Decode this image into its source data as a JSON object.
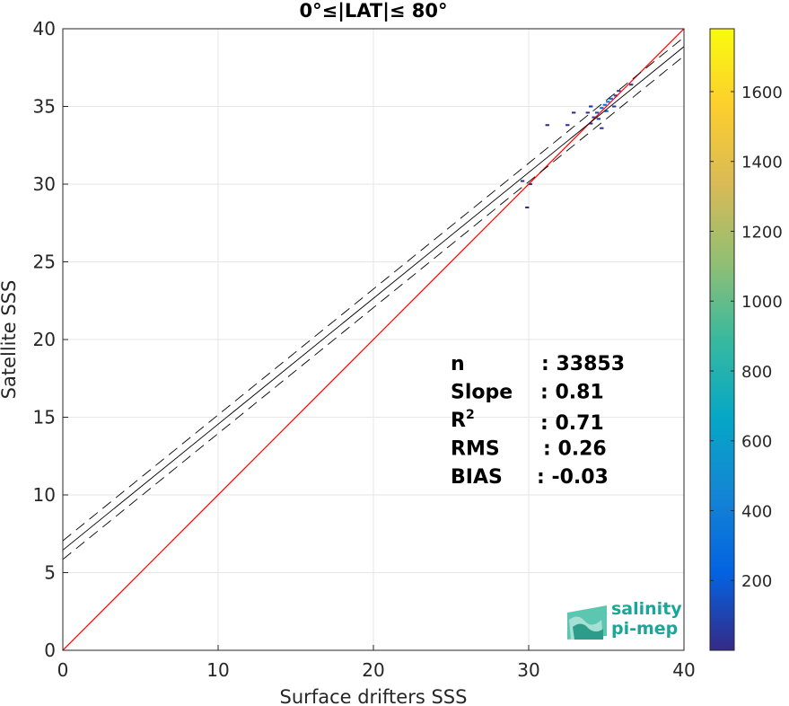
{
  "chart_data": {
    "type": "heatmap",
    "title": "0°≤|LAT|≤ 80°",
    "xlabel": "Surface drifters SSS",
    "ylabel": "Satellite SSS",
    "xlim": [
      0,
      40
    ],
    "ylim": [
      0,
      40
    ],
    "xticks": [
      "0",
      "10",
      "20",
      "30",
      "40"
    ],
    "yticks": [
      "0",
      "5",
      "10",
      "15",
      "20",
      "25",
      "30",
      "35",
      "40"
    ],
    "grid": true,
    "colorbar": {
      "range": [
        0,
        1780
      ],
      "ticks": [
        "200",
        "400",
        "600",
        "800",
        "1000",
        "1200",
        "1400",
        "1600"
      ],
      "tick_values": [
        200,
        400,
        600,
        800,
        1000,
        1200,
        1400,
        1600
      ],
      "colormap": [
        "#352a87",
        "#0363e1",
        "#1485d4",
        "#06a7c6",
        "#38b99e",
        "#92bf73",
        "#d9ba56",
        "#fcce2e",
        "#f9fb0e"
      ]
    },
    "lines": {
      "identity": {
        "slope": 1,
        "intercept": 0,
        "color": "#ff0000"
      },
      "fit": {
        "slope": 0.81,
        "intercept": 6.45,
        "color": "#000000"
      },
      "fit_band_offset": 0.6
    },
    "density_cells": [
      {
        "x": 34.9,
        "y": 35.1,
        "count": 300
      },
      {
        "x": 35.1,
        "y": 35.3,
        "count": 330
      },
      {
        "x": 35.3,
        "y": 35.5,
        "count": 260
      },
      {
        "x": 34.7,
        "y": 34.9,
        "count": 220
      },
      {
        "x": 35.0,
        "y": 34.7,
        "count": 150
      },
      {
        "x": 34.4,
        "y": 34.6,
        "count": 140
      },
      {
        "x": 34.2,
        "y": 34.3,
        "count": 90
      },
      {
        "x": 34.5,
        "y": 34.2,
        "count": 60
      },
      {
        "x": 33.8,
        "y": 34.6,
        "count": 40
      },
      {
        "x": 34.0,
        "y": 35.0,
        "count": 30
      },
      {
        "x": 35.5,
        "y": 35.0,
        "count": 50
      },
      {
        "x": 35.6,
        "y": 35.7,
        "count": 45
      },
      {
        "x": 34.0,
        "y": 33.9,
        "count": 25
      },
      {
        "x": 34.7,
        "y": 33.6,
        "count": 20
      },
      {
        "x": 35.8,
        "y": 36.0,
        "count": 15
      },
      {
        "x": 36.6,
        "y": 36.4,
        "count": 5
      },
      {
        "x": 32.5,
        "y": 33.8,
        "count": 8
      },
      {
        "x": 32.9,
        "y": 34.6,
        "count": 6
      },
      {
        "x": 31.2,
        "y": 33.8,
        "count": 3
      },
      {
        "x": 29.6,
        "y": 30.2,
        "count": 4
      },
      {
        "x": 30.1,
        "y": 30.0,
        "count": 3
      },
      {
        "x": 29.9,
        "y": 28.5,
        "count": 2
      }
    ],
    "stats": [
      {
        "label": "n",
        "value": ": 33853"
      },
      {
        "label": "Slope",
        "value": ": 0.81"
      },
      {
        "label": "R",
        "sup": "2",
        "value": ": 0.71"
      },
      {
        "label": "RMS",
        "value": ": 0.26"
      },
      {
        "label": "BIAS",
        "value": ": -0.03"
      }
    ]
  },
  "logo": {
    "line1": "salinity",
    "line2": "pi-mep"
  }
}
